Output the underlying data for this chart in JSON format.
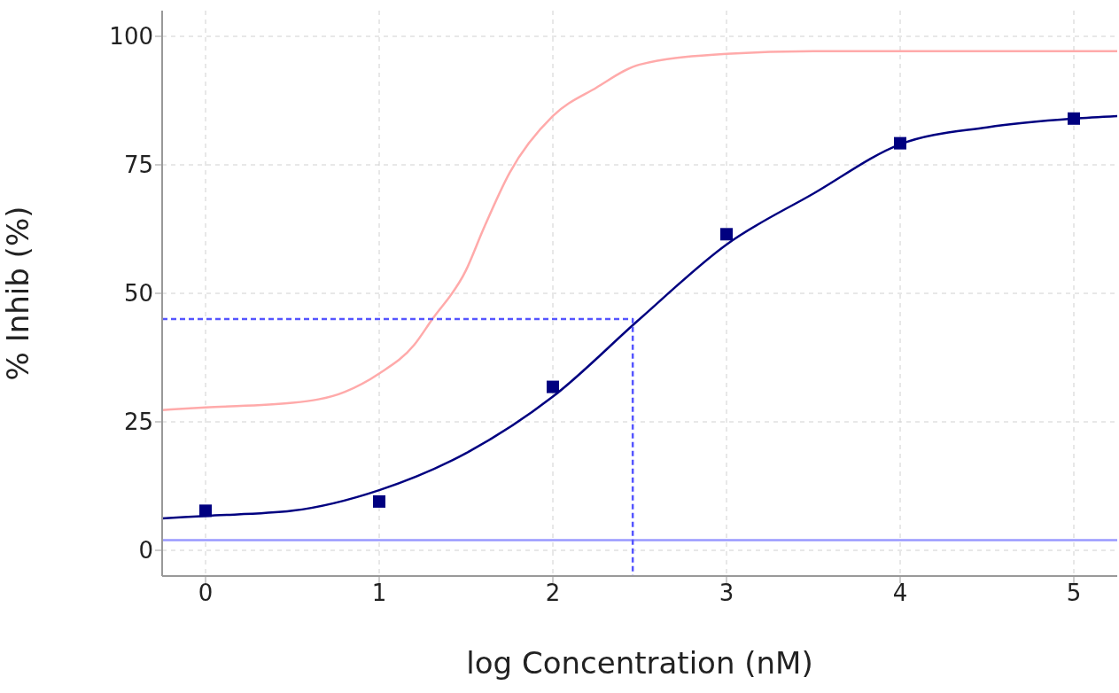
{
  "chart_data": {
    "type": "line",
    "xlabel": "log Concentration (nM)",
    "ylabel": "% Inhib (%)",
    "xlim": [
      -0.25,
      5.25
    ],
    "xticks": [
      0,
      1,
      2,
      3,
      4,
      5
    ],
    "ylim": [
      -5,
      105
    ],
    "yticks": [
      0,
      25,
      50,
      75,
      100
    ],
    "grid": true,
    "series": [
      {
        "color": "#ffaaaa",
        "marker": "none",
        "line_style": "solid",
        "x": [
          -0.25,
          0,
          0.5,
          0.8,
          1,
          1.2,
          1.3,
          1.5,
          1.6,
          1.75,
          2,
          2.25,
          2.5,
          3,
          3.5,
          5.25
        ],
        "values": [
          27.3,
          27.8,
          28.7,
          30.8,
          34.4,
          39.9,
          44.7,
          54.5,
          62.5,
          73.4,
          84.5,
          90,
          94.5,
          96.6,
          97.1,
          97.1
        ]
      },
      {
        "color": "#000080",
        "marker": "none",
        "line_style": "solid",
        "x": [
          -0.25,
          0,
          0.5,
          1,
          1.5,
          2,
          2.5,
          3,
          3.5,
          4,
          4.5,
          5,
          5.25
        ],
        "values": [
          6.2,
          6.7,
          7.7,
          11.7,
          18.9,
          29.9,
          45,
          59.5,
          69.4,
          79,
          82.3,
          84,
          84.5
        ]
      },
      {
        "type": "scatter",
        "color": "#000080",
        "marker": "square",
        "x": [
          0,
          1,
          2,
          3,
          4,
          5
        ],
        "values": [
          7.7,
          9.5,
          31.8,
          61.5,
          79.2,
          84
        ]
      },
      {
        "color": "#5555ff",
        "marker": "none",
        "line_style": "dashed",
        "x": [
          -0.25,
          2.46,
          2.46
        ],
        "values": [
          45,
          45,
          -5
        ]
      }
    ],
    "ref_lines": [
      {
        "axis": "y",
        "value": 2,
        "color": "#9999ff",
        "line_style": "solid"
      }
    ]
  }
}
